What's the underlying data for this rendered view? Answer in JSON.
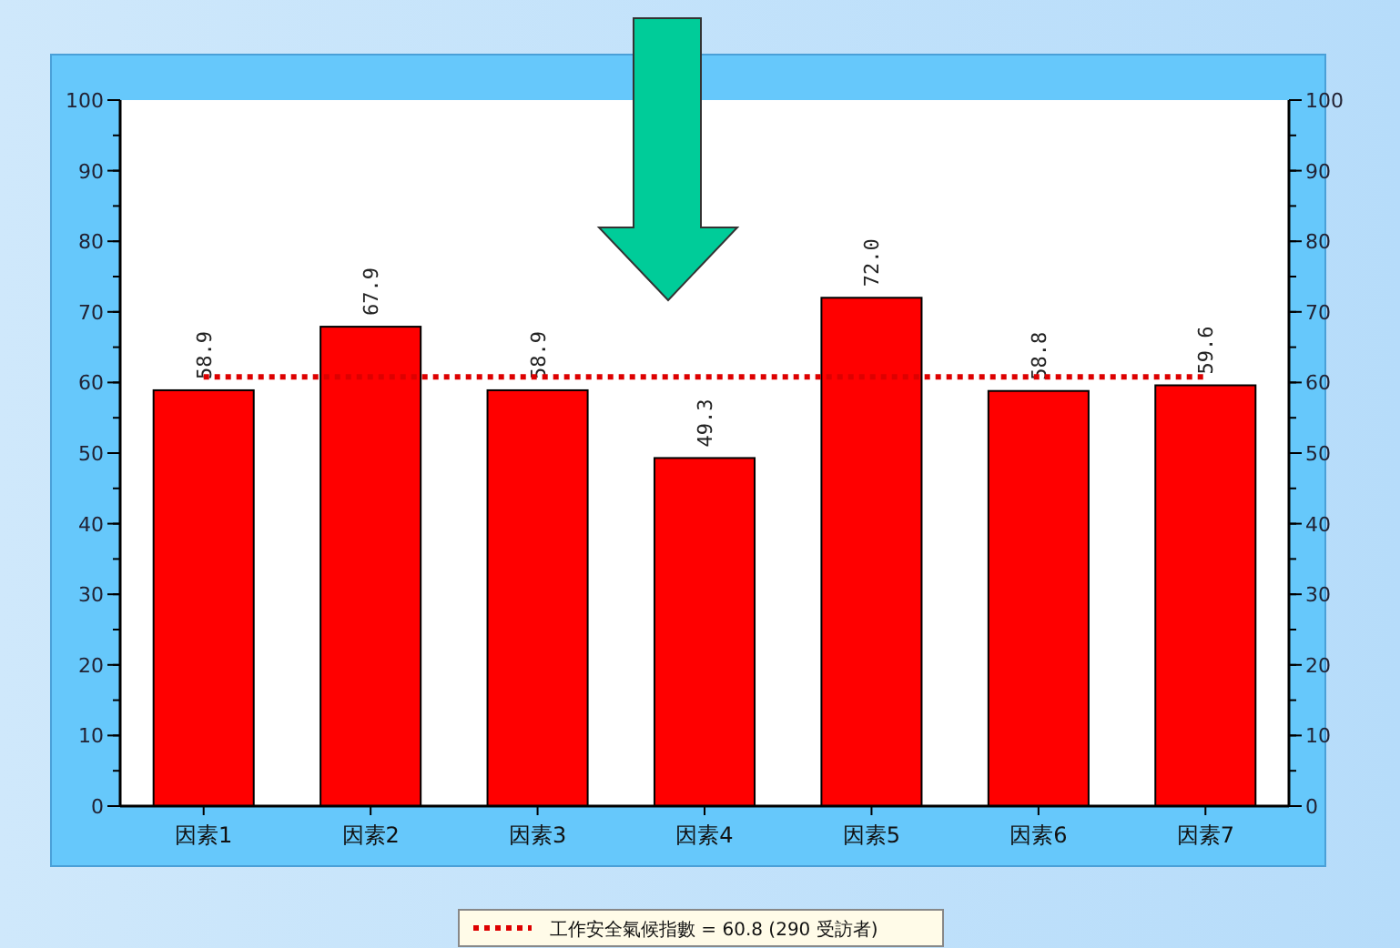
{
  "chart_data": {
    "type": "bar",
    "categories": [
      "因素1",
      "因素2",
      "因素3",
      "因素4",
      "因素5",
      "因素6",
      "因素7"
    ],
    "values": [
      58.9,
      67.9,
      58.9,
      49.3,
      72.0,
      58.8,
      59.6
    ],
    "value_labels": [
      "58.9",
      "67.9",
      "58.9",
      "49.3",
      "72.0",
      "58.8",
      "59.6"
    ],
    "color": "#ff0000",
    "ylim": [
      0,
      100
    ],
    "yticks": [
      0,
      10,
      20,
      30,
      40,
      50,
      60,
      70,
      80,
      90,
      100
    ],
    "y2lim": [
      0,
      100
    ],
    "y2ticks": [
      0,
      10,
      20,
      30,
      40,
      50,
      60,
      70,
      80,
      90,
      100
    ],
    "ref_lines": [
      {
        "axis": "y",
        "value": 60.8,
        "label": "工作安全氣候指數 = 60.8 (290 受訪者)",
        "color": "#dd0000",
        "line_style": "dotted"
      }
    ],
    "legend": "bottom",
    "grid": false
  }
}
